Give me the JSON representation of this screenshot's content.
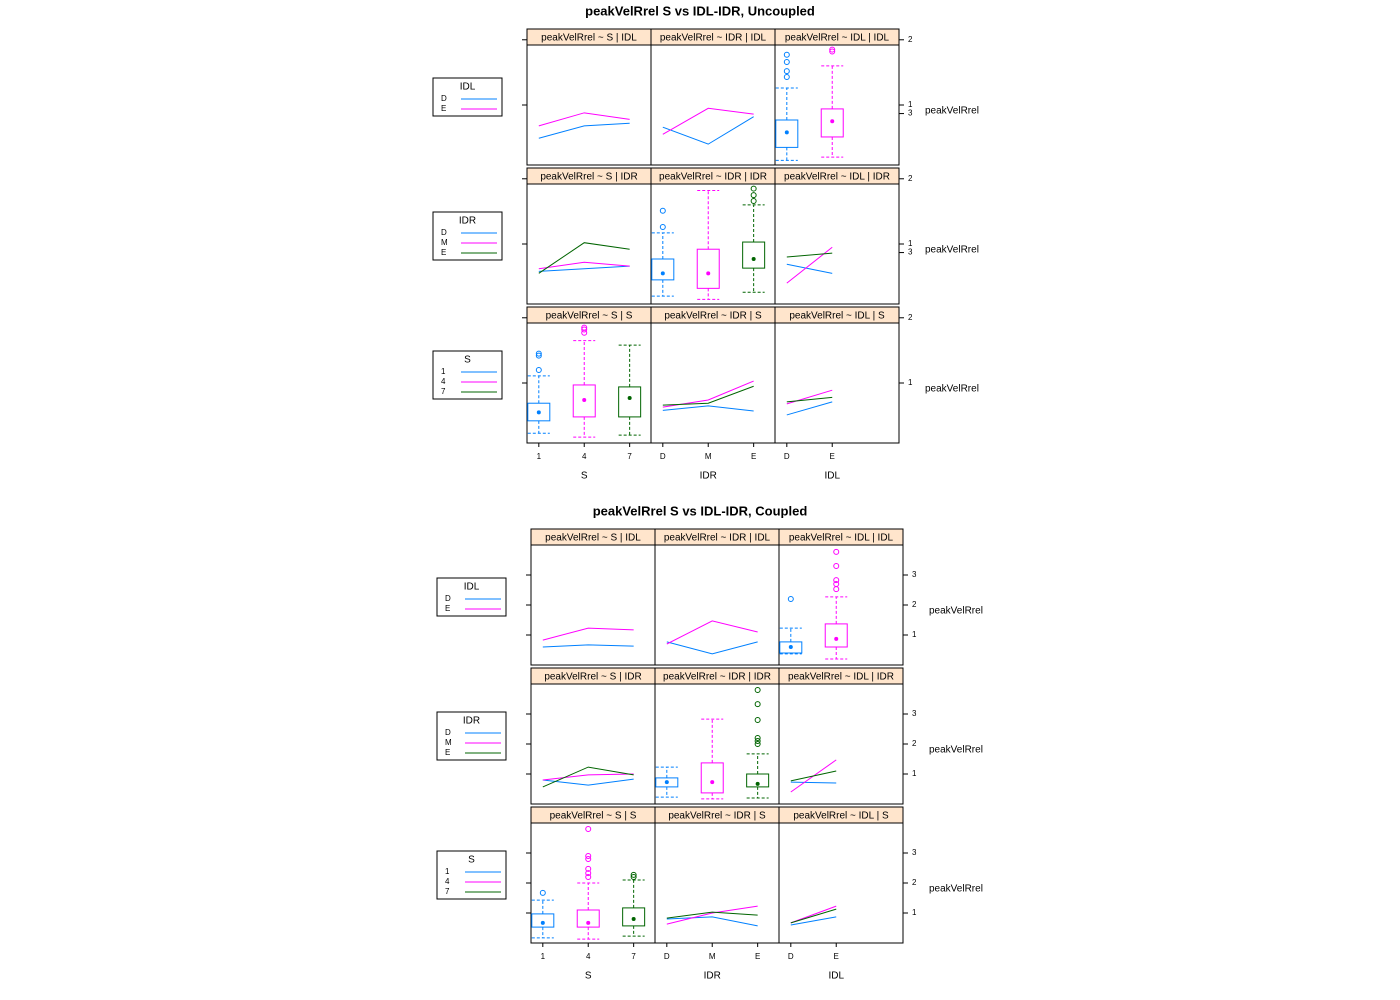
{
  "chart_data": [
    {
      "type": "lattice",
      "title": "peakVelRrel  S vs IDL-IDR, Uncoupled",
      "ylabel": "peakVelRrel",
      "xlabels": [
        "S",
        "IDR",
        "IDL"
      ],
      "xcategories": [
        [
          "1",
          "4",
          "7"
        ],
        [
          "D",
          "M",
          "E"
        ],
        [
          "D",
          "E"
        ]
      ],
      "xlim": [
        0.74,
        3.47
      ],
      "rows": [
        {
          "group": "IDL",
          "ylim": [
            0.08,
            1.92
          ],
          "yticks": [
            1,
            2
          ],
          "y2lim": [
            0,
            7
          ],
          "y2ticks": [
            3
          ],
          "panels": [
            {
              "type": "line",
              "strip": "peakVelRrel ~ S | IDL",
              "series": [
                {
                  "name": "D",
                  "color": "#0080ff",
                  "values": [
                    0.49,
                    0.68,
                    0.72
                  ]
                },
                {
                  "name": "E",
                  "color": "#ff00ff",
                  "values": [
                    0.68,
                    0.88,
                    0.78
                  ]
                }
              ]
            },
            {
              "type": "line",
              "strip": "peakVelRrel ~ IDR | IDL",
              "series": [
                {
                  "name": "D",
                  "color": "#0080ff",
                  "values": [
                    0.66,
                    0.4,
                    0.82
                  ]
                },
                {
                  "name": "E",
                  "color": "#ff00ff",
                  "values": [
                    0.55,
                    0.95,
                    0.86
                  ]
                }
              ]
            },
            {
              "type": "box",
              "strip": "peakVelRrel ~ IDL | IDL",
              "colors": [
                "#0080ff",
                "#ff00ff"
              ],
              "boxes": [
                {
                  "low": 0.15,
                  "q1": 0.35,
                  "median": 0.58,
                  "q3": 0.77,
                  "high": 1.26,
                  "outliers": [
                    1.43,
                    1.52,
                    1.66,
                    1.77
                  ]
                },
                {
                  "low": 0.2,
                  "q1": 0.51,
                  "median": 0.75,
                  "q3": 0.94,
                  "high": 1.6,
                  "outliers": [
                    1.82,
                    1.85
                  ]
                }
              ]
            }
          ]
        },
        {
          "group": "IDR",
          "ylim": [
            0.08,
            1.92
          ],
          "yticks": [
            1,
            2
          ],
          "y2lim": [
            0,
            7
          ],
          "y2ticks": [
            3
          ],
          "panels": [
            {
              "type": "line",
              "strip": "peakVelRrel ~ S | IDR",
              "series": [
                {
                  "name": "D",
                  "color": "#0080ff",
                  "values": [
                    0.58,
                    0.62,
                    0.66
                  ]
                },
                {
                  "name": "M",
                  "color": "#ff00ff",
                  "values": [
                    0.62,
                    0.72,
                    0.66
                  ]
                },
                {
                  "name": "E",
                  "color": "#006400",
                  "values": [
                    0.55,
                    1.02,
                    0.92
                  ]
                }
              ]
            },
            {
              "type": "box",
              "strip": "peakVelRrel ~ IDR | IDR",
              "colors": [
                "#0080ff",
                "#ff00ff",
                "#006400"
              ],
              "boxes": [
                {
                  "low": 0.2,
                  "q1": 0.45,
                  "median": 0.55,
                  "q3": 0.77,
                  "high": 1.17,
                  "outliers": [
                    1.26,
                    1.51
                  ]
                },
                {
                  "low": 0.15,
                  "q1": 0.32,
                  "median": 0.55,
                  "q3": 0.92,
                  "high": 1.82,
                  "outliers": []
                },
                {
                  "low": 0.26,
                  "q1": 0.63,
                  "median": 0.77,
                  "q3": 1.03,
                  "high": 1.6,
                  "outliers": [
                    1.66,
                    1.75,
                    1.85
                  ]
                }
              ]
            },
            {
              "type": "line",
              "strip": "peakVelRrel ~ IDL | IDR",
              "series": [
                {
                  "name": "D",
                  "color": "#0080ff",
                  "values": [
                    0.69,
                    0.55
                  ]
                },
                {
                  "name": "M",
                  "color": "#ff00ff",
                  "values": [
                    0.4,
                    0.95
                  ]
                },
                {
                  "name": "E",
                  "color": "#006400",
                  "values": [
                    0.8,
                    0.86
                  ]
                }
              ]
            }
          ]
        },
        {
          "group": "S",
          "ylim": [
            0.08,
            1.92
          ],
          "yticks": [
            1,
            2
          ],
          "panels": [
            {
              "type": "box",
              "strip": "peakVelRrel ~ S | S",
              "colors": [
                "#0080ff",
                "#ff00ff",
                "#006400"
              ],
              "boxes": [
                {
                  "low": 0.23,
                  "q1": 0.42,
                  "median": 0.55,
                  "q3": 0.69,
                  "high": 1.11,
                  "outliers": [
                    1.2,
                    1.42,
                    1.45
                  ]
                },
                {
                  "low": 0.17,
                  "q1": 0.48,
                  "median": 0.74,
                  "q3": 0.97,
                  "high": 1.65,
                  "outliers": [
                    1.77,
                    1.82,
                    1.85
                  ]
                },
                {
                  "low": 0.2,
                  "q1": 0.48,
                  "median": 0.77,
                  "q3": 0.94,
                  "high": 1.58,
                  "outliers": []
                }
              ]
            },
            {
              "type": "line",
              "strip": "peakVelRrel ~ IDR | S",
              "series": [
                {
                  "name": "1",
                  "color": "#0080ff",
                  "values": [
                    0.58,
                    0.65,
                    0.57
                  ]
                },
                {
                  "name": "4",
                  "color": "#ff00ff",
                  "values": [
                    0.63,
                    0.74,
                    1.03
                  ]
                },
                {
                  "name": "7",
                  "color": "#006400",
                  "values": [
                    0.66,
                    0.69,
                    0.95
                  ]
                }
              ]
            },
            {
              "type": "line",
              "strip": "peakVelRrel ~ IDL | S",
              "series": [
                {
                  "name": "1",
                  "color": "#0080ff",
                  "values": [
                    0.51,
                    0.71
                  ]
                },
                {
                  "name": "4",
                  "color": "#ff00ff",
                  "values": [
                    0.68,
                    0.89
                  ]
                },
                {
                  "name": "7",
                  "color": "#006400",
                  "values": [
                    0.71,
                    0.78
                  ]
                }
              ]
            }
          ]
        }
      ]
    },
    {
      "type": "lattice",
      "title": "peakVelRrel  S vs IDL-IDR, Coupled",
      "ylabel": "peakVelRrel",
      "xlabels": [
        "S",
        "IDR",
        "IDL"
      ],
      "xcategories": [
        [
          "1",
          "4",
          "7"
        ],
        [
          "D",
          "M",
          "E"
        ],
        [
          "D",
          "E"
        ]
      ],
      "xlim": [
        0.74,
        3.47
      ],
      "rows": [
        {
          "group": "IDL",
          "ylim": [
            0,
            4
          ],
          "yticks": [
            1,
            2,
            3
          ],
          "panels": [
            {
              "type": "line",
              "strip": "peakVelRrel ~ S | IDL",
              "series": [
                {
                  "name": "D",
                  "color": "#0080ff",
                  "values": [
                    0.6,
                    0.67,
                    0.63
                  ]
                },
                {
                  "name": "E",
                  "color": "#ff00ff",
                  "values": [
                    0.83,
                    1.23,
                    1.17
                  ]
                }
              ]
            },
            {
              "type": "line",
              "strip": "peakVelRrel ~ IDR | IDL",
              "series": [
                {
                  "name": "D",
                  "color": "#0080ff",
                  "values": [
                    0.77,
                    0.37,
                    0.77
                  ]
                },
                {
                  "name": "E",
                  "color": "#ff00ff",
                  "values": [
                    0.7,
                    1.47,
                    1.1
                  ]
                }
              ]
            },
            {
              "type": "box",
              "strip": "peakVelRrel ~ IDL | IDL",
              "colors": [
                "#0080ff",
                "#ff00ff"
              ],
              "boxes": [
                {
                  "low": 0.37,
                  "q1": 0.4,
                  "median": 0.6,
                  "q3": 0.77,
                  "high": 1.23,
                  "outliers": [
                    2.2
                  ]
                },
                {
                  "low": 0.2,
                  "q1": 0.6,
                  "median": 0.87,
                  "q3": 1.37,
                  "high": 2.27,
                  "outliers": [
                    2.53,
                    2.7,
                    2.83,
                    3.3,
                    3.77
                  ]
                }
              ]
            }
          ]
        },
        {
          "group": "IDR",
          "ylim": [
            0,
            4
          ],
          "yticks": [
            1,
            2,
            3
          ],
          "panels": [
            {
              "type": "line",
              "strip": "peakVelRrel ~ S | IDR",
              "series": [
                {
                  "name": "D",
                  "color": "#0080ff",
                  "values": [
                    0.8,
                    0.63,
                    0.83
                  ]
                },
                {
                  "name": "M",
                  "color": "#ff00ff",
                  "values": [
                    0.8,
                    0.97,
                    1.0
                  ]
                },
                {
                  "name": "E",
                  "color": "#006400",
                  "values": [
                    0.57,
                    1.23,
                    0.97
                  ]
                }
              ]
            },
            {
              "type": "box",
              "strip": "peakVelRrel ~ IDR | IDR",
              "colors": [
                "#0080ff",
                "#ff00ff",
                "#006400"
              ],
              "boxes": [
                {
                  "low": 0.23,
                  "q1": 0.57,
                  "median": 0.73,
                  "q3": 0.87,
                  "high": 1.23,
                  "outliers": []
                },
                {
                  "low": 0.17,
                  "q1": 0.37,
                  "median": 0.73,
                  "q3": 1.37,
                  "high": 2.83,
                  "outliers": []
                },
                {
                  "low": 0.2,
                  "q1": 0.57,
                  "median": 0.67,
                  "q3": 1.0,
                  "high": 1.67,
                  "outliers": [
                    2.0,
                    2.1,
                    2.2,
                    2.8,
                    3.33,
                    3.8
                  ]
                }
              ]
            },
            {
              "type": "line",
              "strip": "peakVelRrel ~ IDL | IDR",
              "series": [
                {
                  "name": "D",
                  "color": "#0080ff",
                  "values": [
                    0.73,
                    0.7
                  ]
                },
                {
                  "name": "M",
                  "color": "#ff00ff",
                  "values": [
                    0.4,
                    1.47
                  ]
                },
                {
                  "name": "E",
                  "color": "#006400",
                  "values": [
                    0.77,
                    1.1
                  ]
                }
              ]
            }
          ]
        },
        {
          "group": "S",
          "ylim": [
            0,
            4
          ],
          "yticks": [
            1,
            2,
            3
          ],
          "panels": [
            {
              "type": "box",
              "strip": "peakVelRrel ~ S | S",
              "colors": [
                "#0080ff",
                "#ff00ff",
                "#006400"
              ],
              "boxes": [
                {
                  "low": 0.17,
                  "q1": 0.53,
                  "median": 0.67,
                  "q3": 0.97,
                  "high": 1.43,
                  "outliers": [
                    1.67
                  ]
                },
                {
                  "low": 0.13,
                  "q1": 0.53,
                  "median": 0.67,
                  "q3": 1.1,
                  "high": 2.0,
                  "outliers": [
                    2.2,
                    2.33,
                    2.47,
                    2.8,
                    2.9,
                    3.8
                  ]
                },
                {
                  "low": 0.23,
                  "q1": 0.57,
                  "median": 0.8,
                  "q3": 1.17,
                  "high": 2.1,
                  "outliers": [
                    2.2,
                    2.27
                  ]
                }
              ]
            },
            {
              "type": "line",
              "strip": "peakVelRrel ~ IDR | S",
              "series": [
                {
                  "name": "1",
                  "color": "#0080ff",
                  "values": [
                    0.8,
                    0.87,
                    0.57
                  ]
                },
                {
                  "name": "4",
                  "color": "#ff00ff",
                  "values": [
                    0.63,
                    1.0,
                    1.23
                  ]
                },
                {
                  "name": "7",
                  "color": "#006400",
                  "values": [
                    0.83,
                    1.03,
                    0.93
                  ]
                }
              ]
            },
            {
              "type": "line",
              "strip": "peakVelRrel ~ IDL | S",
              "series": [
                {
                  "name": "1",
                  "color": "#0080ff",
                  "values": [
                    0.6,
                    0.87
                  ]
                },
                {
                  "name": "4",
                  "color": "#ff00ff",
                  "values": [
                    0.67,
                    1.23
                  ]
                },
                {
                  "name": "7",
                  "color": "#006400",
                  "values": [
                    0.67,
                    1.13
                  ]
                }
              ]
            }
          ]
        }
      ]
    }
  ]
}
